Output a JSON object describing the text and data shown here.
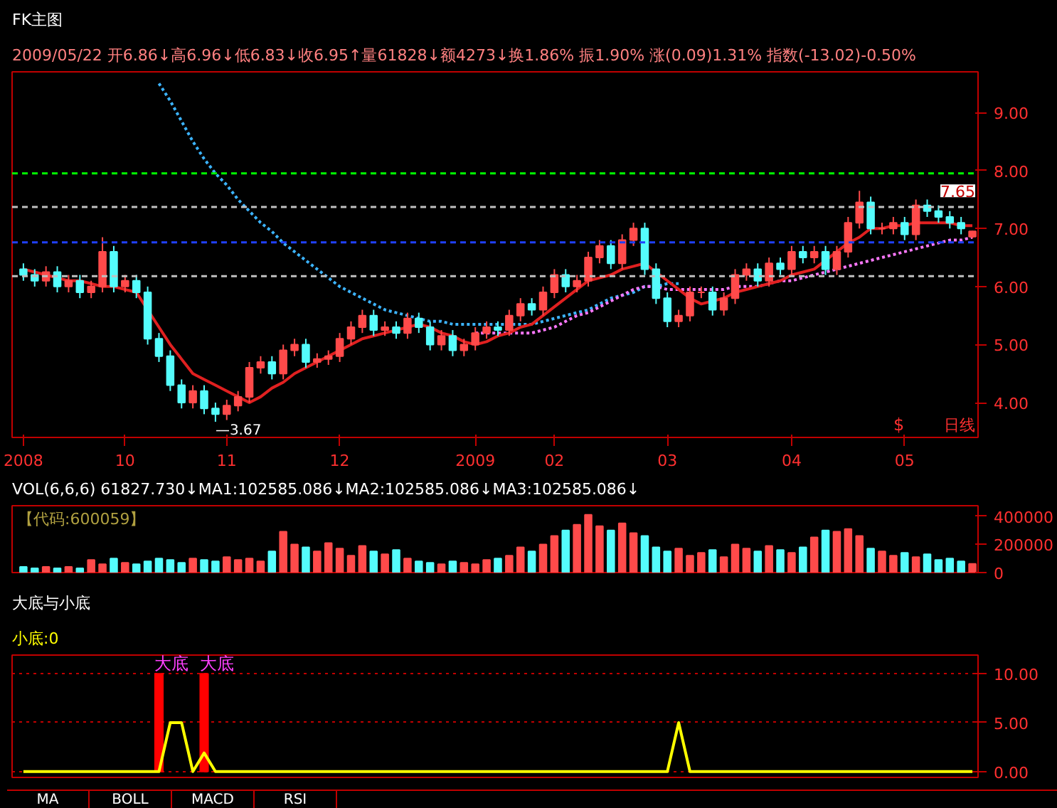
{
  "chart_data": [
    {
      "type": "candlestick",
      "title": "FK主图",
      "subtitle": "2009/05/22 开6.86↓高6.96↓低6.83↓收6.95↑量61828↓额4273↓换1.86% 振1.90% 涨(0.09)1.31% 指数(-13.02)-0.50%",
      "categories": [
        "2008",
        null,
        null,
        null,
        null,
        null,
        null,
        null,
        null,
        "10",
        null,
        null,
        null,
        null,
        null,
        null,
        null,
        null,
        "11",
        null,
        null,
        null,
        null,
        null,
        null,
        null,
        null,
        null,
        "12",
        null,
        null,
        null,
        null,
        null,
        null,
        null,
        null,
        null,
        null,
        null,
        "2009",
        null,
        null,
        null,
        null,
        null,
        null,
        "02",
        null,
        null,
        null,
        null,
        null,
        null,
        null,
        null,
        null,
        "03",
        null,
        null,
        null,
        null,
        null,
        null,
        null,
        null,
        null,
        null,
        "04",
        null,
        null,
        null,
        null,
        null,
        null,
        null,
        null,
        null,
        "05",
        null,
        null,
        null,
        null,
        null,
        null
      ],
      "ohlc": [
        [
          6.3,
          6.4,
          6.1,
          6.2
        ],
        [
          6.2,
          6.3,
          6.0,
          6.1
        ],
        [
          6.1,
          6.35,
          6.0,
          6.25
        ],
        [
          6.25,
          6.35,
          5.9,
          6.0
        ],
        [
          6.0,
          6.2,
          5.9,
          6.1
        ],
        [
          6.1,
          6.2,
          5.8,
          5.9
        ],
        [
          5.9,
          6.1,
          5.8,
          6.0
        ],
        [
          6.0,
          6.85,
          5.9,
          6.6
        ],
        [
          6.6,
          6.7,
          5.9,
          6.0
        ],
        [
          6.0,
          6.2,
          5.9,
          6.1
        ],
        [
          6.1,
          6.2,
          5.8,
          5.9
        ],
        [
          5.9,
          6.0,
          5.0,
          5.1
        ],
        [
          5.1,
          5.2,
          4.7,
          4.8
        ],
        [
          4.8,
          4.9,
          4.2,
          4.3
        ],
        [
          4.3,
          4.4,
          3.9,
          4.0
        ],
        [
          4.0,
          4.3,
          3.9,
          4.2
        ],
        [
          4.2,
          4.3,
          3.8,
          3.9
        ],
        [
          3.9,
          4.0,
          3.67,
          3.8
        ],
        [
          3.8,
          4.05,
          3.7,
          3.95
        ],
        [
          3.95,
          4.2,
          3.85,
          4.1
        ],
        [
          4.1,
          4.7,
          4.0,
          4.6
        ],
        [
          4.6,
          4.8,
          4.5,
          4.7
        ],
        [
          4.7,
          4.8,
          4.4,
          4.5
        ],
        [
          4.5,
          5.0,
          4.4,
          4.9
        ],
        [
          4.9,
          5.1,
          4.8,
          5.0
        ],
        [
          5.0,
          5.1,
          4.6,
          4.7
        ],
        [
          4.7,
          4.85,
          4.6,
          4.75
        ],
        [
          4.75,
          4.9,
          4.65,
          4.8
        ],
        [
          4.8,
          5.2,
          4.7,
          5.1
        ],
        [
          5.1,
          5.4,
          5.0,
          5.3
        ],
        [
          5.3,
          5.6,
          5.2,
          5.5
        ],
        [
          5.5,
          5.6,
          5.15,
          5.25
        ],
        [
          5.25,
          5.4,
          5.15,
          5.3
        ],
        [
          5.3,
          5.4,
          5.1,
          5.2
        ],
        [
          5.2,
          5.55,
          5.1,
          5.45
        ],
        [
          5.45,
          5.55,
          5.2,
          5.3
        ],
        [
          5.3,
          5.4,
          4.9,
          5.0
        ],
        [
          5.0,
          5.25,
          4.9,
          5.15
        ],
        [
          5.15,
          5.25,
          4.8,
          4.9
        ],
        [
          4.9,
          5.1,
          4.8,
          5.0
        ],
        [
          5.0,
          5.3,
          4.9,
          5.2
        ],
        [
          5.2,
          5.4,
          5.1,
          5.3
        ],
        [
          5.3,
          5.4,
          5.15,
          5.25
        ],
        [
          5.25,
          5.6,
          5.15,
          5.5
        ],
        [
          5.5,
          5.8,
          5.4,
          5.7
        ],
        [
          5.7,
          5.8,
          5.5,
          5.6
        ],
        [
          5.6,
          6.0,
          5.5,
          5.9
        ],
        [
          5.9,
          6.3,
          5.8,
          6.2
        ],
        [
          6.2,
          6.3,
          5.9,
          6.0
        ],
        [
          6.0,
          6.2,
          5.9,
          6.1
        ],
        [
          6.1,
          6.6,
          6.0,
          6.5
        ],
        [
          6.5,
          6.8,
          6.4,
          6.7
        ],
        [
          6.7,
          6.8,
          6.3,
          6.4
        ],
        [
          6.4,
          6.9,
          6.3,
          6.8
        ],
        [
          6.8,
          7.1,
          6.7,
          7.0
        ],
        [
          7.0,
          7.1,
          6.2,
          6.3
        ],
        [
          6.3,
          6.4,
          5.7,
          5.8
        ],
        [
          5.8,
          5.9,
          5.3,
          5.4
        ],
        [
          5.4,
          5.6,
          5.3,
          5.5
        ],
        [
          5.5,
          6.0,
          5.4,
          5.9
        ],
        [
          5.9,
          6.0,
          5.8,
          5.9
        ],
        [
          5.9,
          6.0,
          5.5,
          5.6
        ],
        [
          5.6,
          5.9,
          5.5,
          5.8
        ],
        [
          5.8,
          6.3,
          5.7,
          6.2
        ],
        [
          6.2,
          6.4,
          6.1,
          6.3
        ],
        [
          6.3,
          6.4,
          6.0,
          6.1
        ],
        [
          6.1,
          6.5,
          6.0,
          6.4
        ],
        [
          6.4,
          6.5,
          6.2,
          6.3
        ],
        [
          6.3,
          6.7,
          6.2,
          6.6
        ],
        [
          6.6,
          6.7,
          6.4,
          6.5
        ],
        [
          6.5,
          6.7,
          6.4,
          6.6
        ],
        [
          6.6,
          6.7,
          6.2,
          6.3
        ],
        [
          6.3,
          6.7,
          6.2,
          6.6
        ],
        [
          6.6,
          7.2,
          6.5,
          7.1
        ],
        [
          7.1,
          7.65,
          7.0,
          7.45
        ],
        [
          7.45,
          7.55,
          6.9,
          7.0
        ],
        [
          7.0,
          7.1,
          6.9,
          7.0
        ],
        [
          7.0,
          7.2,
          6.9,
          7.1
        ],
        [
          7.1,
          7.2,
          6.8,
          6.9
        ],
        [
          6.9,
          7.5,
          6.8,
          7.4
        ],
        [
          7.4,
          7.5,
          7.2,
          7.3
        ],
        [
          7.3,
          7.4,
          7.1,
          7.2
        ],
        [
          7.2,
          7.3,
          7.0,
          7.1
        ],
        [
          7.1,
          7.2,
          6.9,
          7.0
        ],
        [
          6.86,
          6.96,
          6.83,
          6.95
        ]
      ],
      "series": [
        {
          "type": "line",
          "color": "#3cb4ff",
          "line_style": "dotted",
          "values": [
            null,
            null,
            null,
            null,
            null,
            null,
            null,
            null,
            null,
            null,
            null,
            null,
            9.5,
            9.2,
            8.85,
            8.5,
            8.2,
            7.95,
            7.75,
            7.5,
            7.3,
            7.1,
            6.95,
            6.75,
            6.6,
            6.45,
            6.3,
            6.15,
            6.0,
            5.9,
            5.8,
            5.7,
            5.6,
            5.55,
            5.5,
            5.45,
            5.4,
            5.4,
            5.35,
            5.35,
            5.35,
            5.35,
            5.35,
            5.35,
            5.35,
            5.35,
            5.4,
            5.45,
            5.5,
            5.55,
            5.6,
            5.7,
            5.8,
            5.85,
            5.9,
            6.0,
            6.0,
            6.05,
            6.05,
            null,
            null,
            null,
            null,
            null,
            null,
            null,
            null,
            null,
            null,
            null,
            null,
            null,
            null,
            null,
            null,
            null,
            null,
            null,
            null,
            null,
            null,
            null,
            null,
            null,
            null
          ]
        },
        {
          "type": "line",
          "color": "#ff78ff",
          "line_style": "dotted",
          "values": [
            null,
            null,
            null,
            null,
            null,
            null,
            null,
            null,
            null,
            null,
            null,
            null,
            null,
            null,
            null,
            null,
            null,
            null,
            null,
            null,
            null,
            null,
            null,
            null,
            null,
            null,
            null,
            null,
            null,
            null,
            null,
            null,
            null,
            null,
            null,
            null,
            null,
            null,
            null,
            null,
            5.2,
            5.2,
            5.2,
            5.2,
            5.2,
            5.2,
            5.25,
            5.3,
            5.4,
            5.5,
            5.55,
            5.65,
            5.75,
            5.85,
            5.95,
            6.0,
            6.0,
            5.95,
            5.95,
            5.95,
            5.95,
            5.95,
            5.95,
            6.0,
            6.0,
            6.0,
            6.05,
            6.1,
            6.1,
            6.15,
            6.2,
            6.25,
            6.3,
            6.35,
            6.4,
            6.45,
            6.5,
            6.55,
            6.6,
            6.65,
            6.7,
            6.75,
            6.8,
            6.8,
            6.85
          ]
        },
        {
          "type": "line",
          "color": "#e02020",
          "line_style": "solid",
          "values": [
            6.3,
            6.25,
            6.2,
            6.15,
            6.1,
            6.1,
            6.05,
            6.0,
            6.0,
            5.95,
            5.9,
            5.6,
            5.3,
            5.0,
            4.75,
            4.5,
            4.4,
            4.3,
            4.2,
            4.1,
            4.0,
            4.1,
            4.25,
            4.35,
            4.5,
            4.6,
            4.7,
            4.8,
            4.9,
            5.0,
            5.1,
            5.15,
            5.2,
            5.25,
            5.3,
            5.35,
            5.3,
            5.2,
            5.15,
            5.05,
            5.0,
            5.05,
            5.15,
            5.2,
            5.3,
            5.35,
            5.5,
            5.65,
            5.8,
            5.95,
            6.1,
            6.15,
            6.2,
            6.3,
            6.35,
            6.4,
            6.25,
            6.1,
            5.95,
            5.8,
            5.7,
            5.75,
            5.8,
            5.9,
            5.95,
            6.0,
            6.05,
            6.1,
            6.2,
            6.25,
            6.3,
            6.45,
            6.6,
            6.75,
            6.85,
            7.0,
            7.0,
            7.05,
            7.05,
            7.1,
            7.1,
            7.1,
            7.1,
            7.05,
            7.05
          ]
        }
      ],
      "ylim": [
        3.4,
        9.7
      ],
      "yticks": [
        {
          "value": 4,
          "label": "4.00"
        },
        {
          "value": 5,
          "label": "5.00"
        },
        {
          "value": 6,
          "label": "6.00"
        },
        {
          "value": 7,
          "label": "7.00"
        },
        {
          "value": 8,
          "label": "8.00"
        },
        {
          "value": 9,
          "label": "9.00"
        }
      ],
      "ref_lines": [
        {
          "axis": "y",
          "value": 7.95,
          "color": "#00ff00",
          "line_style": "dashed"
        },
        {
          "axis": "y",
          "value": 7.37,
          "color": "#c0c0c0",
          "line_style": "dashed"
        },
        {
          "axis": "y",
          "value": 6.76,
          "color": "#2040ff",
          "line_style": "dashed"
        },
        {
          "axis": "y",
          "value": 6.18,
          "color": "#c0c0c0",
          "line_style": "dashed"
        }
      ],
      "annotations": [
        "—3.67",
        {
          "text": "7.65",
          "y": 7.65
        },
        "日线",
        "$"
      ]
    },
    {
      "type": "bar",
      "title": "VOL(6,6,6) 61827.730↓MA1:102585.086↓MA2:102585.086↓MA3:102585.086↓",
      "categories": [
        "2008",
        null,
        null,
        null,
        null,
        null,
        null,
        null,
        null,
        "10",
        null,
        null,
        null,
        null,
        null,
        null,
        null,
        null,
        "11",
        null,
        null,
        null,
        null,
        null,
        null,
        null,
        null,
        null,
        "12",
        null,
        null,
        null,
        null,
        null,
        null,
        null,
        null,
        null,
        null,
        null,
        "2009",
        null,
        null,
        null,
        null,
        null,
        null,
        "02",
        null,
        null,
        null,
        null,
        null,
        null,
        null,
        null,
        null,
        "03",
        null,
        null,
        null,
        null,
        null,
        null,
        null,
        null,
        null,
        null,
        "04",
        null,
        null,
        null,
        null,
        null,
        null,
        null,
        null,
        null,
        "05",
        null,
        null,
        null,
        null,
        null,
        null
      ],
      "values": [
        40000,
        30000,
        40000,
        30000,
        40000,
        30000,
        90000,
        60000,
        100000,
        70000,
        60000,
        80000,
        100000,
        90000,
        70000,
        100000,
        90000,
        80000,
        110000,
        90000,
        100000,
        80000,
        150000,
        290000,
        200000,
        180000,
        150000,
        210000,
        170000,
        120000,
        190000,
        150000,
        130000,
        160000,
        100000,
        80000,
        70000,
        60000,
        80000,
        70000,
        60000,
        90000,
        100000,
        120000,
        180000,
        150000,
        200000,
        260000,
        300000,
        340000,
        410000,
        330000,
        300000,
        350000,
        280000,
        260000,
        180000,
        150000,
        170000,
        120000,
        140000,
        160000,
        110000,
        200000,
        170000,
        150000,
        190000,
        160000,
        140000,
        180000,
        250000,
        300000,
        290000,
        310000,
        260000,
        170000,
        150000,
        120000,
        140000,
        110000,
        130000,
        90000,
        100000,
        80000,
        62000
      ],
      "ylim": [
        0,
        475000
      ],
      "yticks": [
        {
          "value": 0,
          "label": "0"
        },
        {
          "value": 200000,
          "label": "200000"
        },
        {
          "value": 400000,
          "label": "400000"
        }
      ],
      "tick_labels": "y",
      "annotations": [
        "【代码:600059】"
      ]
    },
    {
      "type": "line",
      "title": "大底与小底",
      "subtitle": "小底:0",
      "categories": [
        "2008",
        null,
        null,
        null,
        null,
        null,
        null,
        null,
        null,
        "10",
        null,
        null,
        null,
        null,
        null,
        null,
        null,
        null,
        "11",
        null,
        null,
        null,
        null,
        null,
        null,
        null,
        null,
        null,
        "12",
        null,
        null,
        null,
        null,
        null,
        null,
        null,
        null,
        null,
        null,
        null,
        "2009",
        null,
        null,
        null,
        null,
        null,
        null,
        "02",
        null,
        null,
        null,
        null,
        null,
        null,
        null,
        null,
        null,
        "03",
        null,
        null,
        null,
        null,
        null,
        null,
        null,
        null,
        null,
        null,
        "04",
        null,
        null,
        null,
        null,
        null,
        null,
        null,
        null,
        null,
        "05",
        null,
        null,
        null,
        null,
        null,
        null
      ],
      "series": [
        {
          "type": "bar",
          "color": "#ff0000",
          "values": [
            null,
            null,
            null,
            null,
            null,
            null,
            null,
            null,
            null,
            null,
            null,
            null,
            10,
            null,
            null,
            null,
            10,
            null,
            null,
            null,
            null,
            null,
            null,
            null,
            null,
            null,
            null,
            null,
            null,
            null,
            null,
            null,
            null,
            null,
            null,
            null,
            null,
            null,
            null,
            null,
            null,
            null,
            null,
            null,
            null,
            null,
            null,
            null,
            null,
            null,
            null,
            null,
            null,
            null,
            null,
            null,
            null,
            null,
            null,
            null,
            null,
            null,
            null,
            null,
            null,
            null,
            null,
            null,
            null,
            null,
            null,
            null,
            null,
            null,
            null,
            null,
            null,
            null,
            null,
            null,
            null,
            null,
            null,
            null,
            null
          ]
        },
        {
          "type": "line",
          "color": "#ffff00",
          "values": [
            0,
            0,
            0,
            0,
            0,
            0,
            0,
            0,
            0,
            0,
            0,
            0,
            0,
            5,
            5,
            0,
            1.9,
            0,
            0,
            0,
            0,
            0,
            0,
            0,
            0,
            0,
            0,
            0,
            0,
            0,
            0,
            0,
            0,
            0,
            0,
            0,
            0,
            0,
            0,
            0,
            0,
            0,
            0,
            0,
            0,
            0,
            0,
            0,
            0,
            0,
            0,
            0,
            0,
            0,
            0,
            0,
            0,
            0,
            5,
            0,
            0,
            0,
            0,
            0,
            0,
            0,
            0,
            0,
            0,
            0,
            0,
            0,
            0,
            0,
            0,
            0,
            0,
            0,
            0,
            0,
            0,
            0,
            0,
            0,
            0
          ]
        }
      ],
      "ylim": [
        -0.6,
        11.9
      ],
      "yticks": [
        {
          "value": 0,
          "label": "0.00"
        },
        {
          "value": 5,
          "label": "5.00"
        },
        {
          "value": 10,
          "label": "10.00"
        }
      ],
      "grid": "y",
      "tick_labels": "y",
      "annotations": [
        "大底",
        "大底",
        "MA",
        "BOLL",
        "MACD",
        "RSI"
      ]
    }
  ]
}
